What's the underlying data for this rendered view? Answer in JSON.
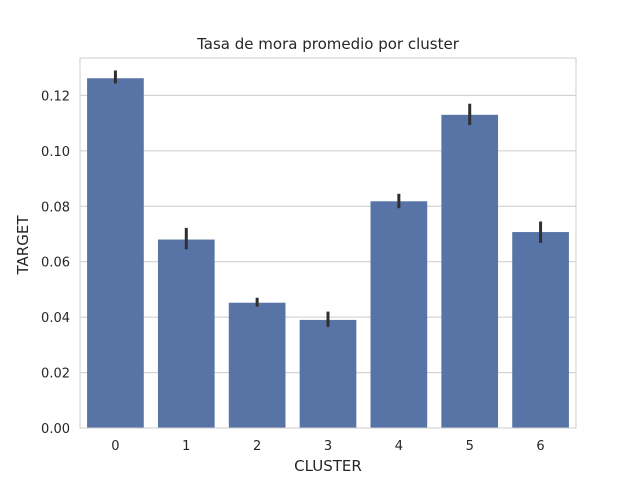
{
  "chart_data": {
    "type": "bar",
    "title": "Tasa de mora promedio por cluster",
    "xlabel": "CLUSTER",
    "ylabel": "TARGET",
    "categories": [
      "0",
      "1",
      "2",
      "3",
      "4",
      "5",
      "6"
    ],
    "values": [
      0.1262,
      0.068,
      0.0452,
      0.039,
      0.0818,
      0.113,
      0.0707
    ],
    "error_low": [
      0.1243,
      0.0645,
      0.0438,
      0.0365,
      0.0793,
      0.1093,
      0.0668
    ],
    "error_high": [
      0.129,
      0.0722,
      0.047,
      0.042,
      0.0845,
      0.117,
      0.0745
    ],
    "ylim": [
      0,
      0.1335
    ],
    "yticks": [
      0.0,
      0.02,
      0.04,
      0.06,
      0.08,
      0.1,
      0.12
    ],
    "ytick_labels": [
      "0.00",
      "0.02",
      "0.04",
      "0.06",
      "0.08",
      "0.10",
      "0.12"
    ],
    "grid": "horizontal",
    "colors": {
      "bar": "#5874a6",
      "error_bar": "#2f2f2f",
      "grid": "#cccccc",
      "frame": "#cccccc",
      "text": "#262626"
    }
  }
}
